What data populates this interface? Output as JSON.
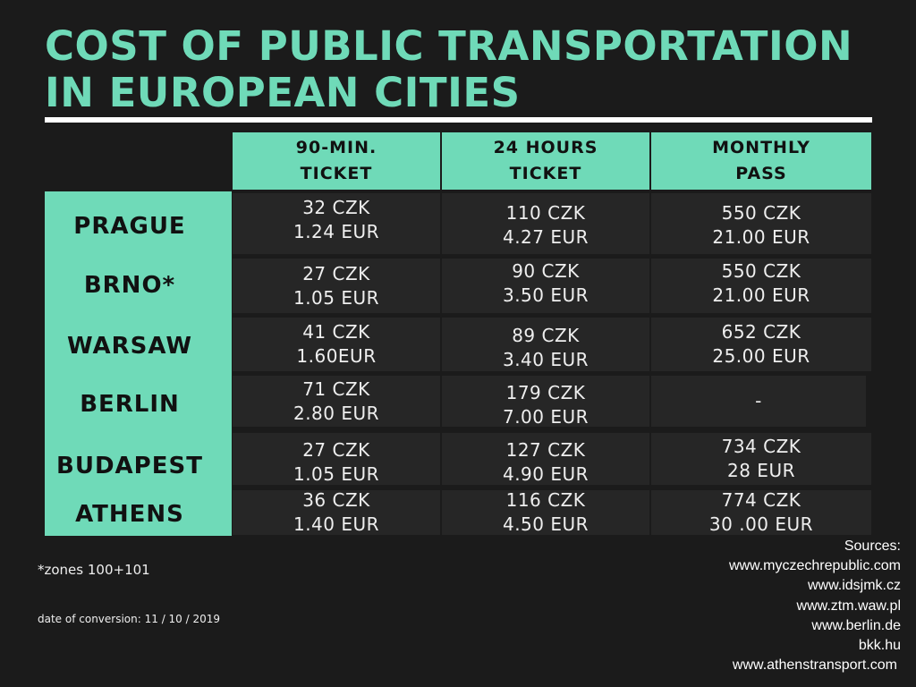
{
  "title": "COST OF PUBLIC TRANSPORTATION IN EUROPEAN CITIES",
  "columns": [
    {
      "line1": "90-MIN.",
      "line2": "TICKET"
    },
    {
      "line1": "24 HOURS",
      "line2": "TICKET"
    },
    {
      "line1": "MONTHLY",
      "line2": "PASS"
    }
  ],
  "rows": [
    {
      "city": "PRAGUE",
      "cells": [
        {
          "czk": "32 CZK",
          "eur": "1.24 EUR"
        },
        {
          "czk": "110 CZK",
          "eur": "4.27 EUR"
        },
        {
          "czk": "550 CZK",
          "eur": "21.00 EUR"
        }
      ]
    },
    {
      "city": "BRNO*",
      "cells": [
        {
          "czk": "27 CZK",
          "eur": "1.05 EUR"
        },
        {
          "czk": "90 CZK",
          "eur": "3.50 EUR"
        },
        {
          "czk": "550 CZK",
          "eur": "21.00 EUR"
        }
      ]
    },
    {
      "city": "WARSAW",
      "cells": [
        {
          "czk": "41 CZK",
          "eur": "1.60EUR"
        },
        {
          "czk": "89 CZK",
          "eur": "3.40 EUR"
        },
        {
          "czk": "652 CZK",
          "eur": "25.00 EUR"
        }
      ]
    },
    {
      "city": "BERLIN",
      "cells": [
        {
          "czk": "71 CZK",
          "eur": "2.80 EUR"
        },
        {
          "czk": "179 CZK",
          "eur": "7.00 EUR"
        },
        {
          "czk": "-",
          "eur": ""
        }
      ]
    },
    {
      "city": "BUDAPEST",
      "cells": [
        {
          "czk": "27 CZK",
          "eur": "1.05 EUR"
        },
        {
          "czk": "127 CZK",
          "eur": "4.90 EUR"
        },
        {
          "czk": "734 CZK",
          "eur": "28 EUR"
        }
      ]
    },
    {
      "city": "ATHENS",
      "cells": [
        {
          "czk": "36 CZK",
          "eur": "1.40 EUR"
        },
        {
          "czk": "116 CZK",
          "eur": "4.50 EUR"
        },
        {
          "czk": "774 CZK",
          "eur": "30 .00 EUR"
        }
      ]
    }
  ],
  "footnote": "*zones 100+101",
  "conversion_date": "date of conversion: 11 / 10 / 2019",
  "sources": {
    "label": "Sources:",
    "links": [
      "www.myczechrepublic.com",
      "www.idsjmk.cz",
      "www.ztm.waw.pl",
      "www.berlin.de",
      "bkk.hu",
      "www.athenstransport.com"
    ]
  },
  "colors": {
    "background": "#1b1b1b",
    "accent": "#6fdab8",
    "cell": "#262626",
    "text": "#eeeeee"
  }
}
